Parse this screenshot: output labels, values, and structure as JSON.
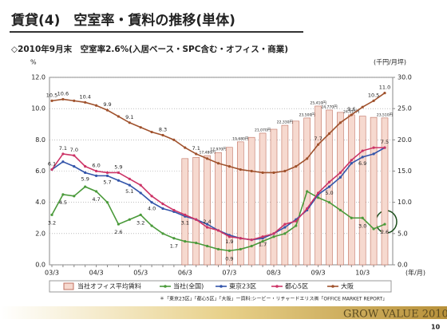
{
  "chart_data": {
    "type": "combo",
    "title": "賃貸(4)　空室率・賃料の推移(単体)",
    "subtitle": "◇2010年9月末　空室率2.6%(入居ベース・SPC含む・オフィス・商業)",
    "y_label": "%",
    "y2_label": "(千円/月坪)",
    "x_label": "(年/月)",
    "note": "＊「東京23区」「都心5区」「大阪」ー資料:シービー・リチャードエリス㈱「OFFICE MARKET REPORT」",
    "footer": "GROW VALUE 2010",
    "page": "10",
    "categories": [
      "03/3",
      null,
      null,
      null,
      "04/3",
      null,
      null,
      null,
      "05/3",
      null,
      null,
      null,
      "06/3",
      null,
      null,
      null,
      "07/3",
      null,
      null,
      null,
      "08/3",
      null,
      null,
      null,
      "09/3",
      null,
      null,
      null,
      "10/3",
      null,
      null
    ],
    "ylim": [
      0,
      12
    ],
    "yticks": [
      {
        "value": 0,
        "label": "0.0"
      },
      {
        "value": 2,
        "label": "2.0"
      },
      {
        "value": 4,
        "label": "4.0"
      },
      {
        "value": 6,
        "label": "6.0"
      },
      {
        "value": 8,
        "label": "8.0"
      },
      {
        "value": 10,
        "label": "10.0"
      },
      {
        "value": 12,
        "label": "12.0"
      }
    ],
    "y2lim": [
      0,
      30
    ],
    "y2ticks": [
      {
        "value": 0,
        "label": "0.0"
      },
      {
        "value": 5,
        "label": "5.0"
      },
      {
        "value": 10,
        "label": "10.0"
      },
      {
        "value": 15,
        "label": "15.0"
      },
      {
        "value": 20,
        "label": "20.0"
      },
      {
        "value": 25,
        "label": "25.0"
      },
      {
        "value": 30,
        "label": "30.0"
      }
    ],
    "grid": true,
    "series": [
      {
        "name": "当社オフィス平均賃料",
        "type": "bar",
        "axis": "y2",
        "color": "#f6d9cf",
        "values": [
          null,
          null,
          null,
          null,
          null,
          null,
          null,
          null,
          null,
          null,
          null,
          null,
          17.0,
          17.2,
          17.48,
          17.97,
          18.8,
          19.68,
          20.4,
          21.07,
          21.7,
          22.33,
          23.0,
          23.5,
          25.41,
          24.77,
          24.4,
          24.01,
          23.8,
          23.6,
          23.51
        ],
        "value_labels": [
          null,
          null,
          null,
          null,
          null,
          null,
          null,
          null,
          null,
          null,
          null,
          null,
          null,
          null,
          "17,480円",
          "17,970円",
          null,
          "19,680円",
          null,
          "21,070円",
          null,
          "22,330円",
          null,
          "23,500円",
          "25,410円",
          "24,770円",
          null,
          "24,010円",
          null,
          null,
          "23,510円"
        ]
      },
      {
        "name": "当社(全国)",
        "type": "line",
        "color": "#4a9a3a",
        "values": [
          3.2,
          4.5,
          4.4,
          5.0,
          4.7,
          4.0,
          2.6,
          2.9,
          3.2,
          2.5,
          2.0,
          1.7,
          1.5,
          1.4,
          1.2,
          1.0,
          0.9,
          1.0,
          1.2,
          1.5,
          1.8,
          2.0,
          2.5,
          4.7,
          4.3,
          4.0,
          3.5,
          3.0,
          3.0,
          2.3,
          2.6
        ],
        "value_labels": [
          "3.2",
          "4.5",
          null,
          null,
          "4.7",
          null,
          "2.6",
          null,
          "3.2",
          null,
          null,
          "1.7",
          null,
          null,
          null,
          null,
          "0.9",
          null,
          null,
          null,
          null,
          null,
          null,
          null,
          null,
          null,
          null,
          null,
          "3.0",
          null,
          "2.6"
        ]
      },
      {
        "name": "東京23区",
        "type": "line",
        "color": "#3355aa",
        "values": [
          6.1,
          6.6,
          6.3,
          5.9,
          5.7,
          5.7,
          5.4,
          5.1,
          4.6,
          4.0,
          3.6,
          3.4,
          3.1,
          2.9,
          2.6,
          2.2,
          1.9,
          1.7,
          1.6,
          1.7,
          2.0,
          2.4,
          2.9,
          3.5,
          4.5,
          5.0,
          5.6,
          6.5,
          6.9,
          7.1,
          7.5
        ],
        "value_labels": [
          null,
          null,
          null,
          "5.9",
          null,
          "5.7",
          null,
          "5.1",
          null,
          "4.0",
          null,
          null,
          "3.1",
          null,
          null,
          null,
          "1.9",
          null,
          null,
          "1.7",
          null,
          null,
          null,
          null,
          null,
          "5.0",
          null,
          null,
          "6.9",
          null,
          null
        ]
      },
      {
        "name": "都心5区",
        "type": "line",
        "color": "#cc3366",
        "values": [
          6.1,
          7.1,
          7.0,
          6.3,
          6.0,
          5.9,
          5.9,
          5.5,
          5.1,
          4.4,
          3.9,
          3.5,
          3.2,
          2.9,
          2.4,
          2.2,
          1.8,
          1.7,
          1.6,
          1.8,
          2.0,
          2.6,
          2.8,
          3.6,
          4.6,
          5.3,
          5.9,
          6.7,
          7.3,
          7.5,
          7.5
        ],
        "value_labels": [
          "6.1",
          "7.1",
          "7.0",
          null,
          "6.0",
          null,
          "5.9",
          null,
          null,
          null,
          null,
          null,
          null,
          null,
          "2.4",
          null,
          null,
          null,
          null,
          null,
          null,
          null,
          null,
          null,
          null,
          null,
          null,
          null,
          null,
          null,
          "7.5"
        ]
      },
      {
        "name": "大阪",
        "type": "line",
        "color": "#a0522d",
        "values": [
          10.5,
          10.6,
          10.5,
          10.4,
          10.2,
          9.9,
          9.5,
          9.1,
          8.8,
          8.5,
          8.3,
          8.0,
          7.5,
          7.1,
          6.8,
          6.5,
          6.3,
          6.1,
          6.0,
          5.9,
          5.9,
          6.0,
          6.3,
          6.8,
          7.7,
          8.4,
          9.1,
          9.6,
          10.1,
          10.5,
          11.0
        ],
        "value_labels": [
          "10.5",
          "10.6",
          null,
          "10.4",
          null,
          "9.9",
          null,
          "9.1",
          null,
          null,
          "8.3",
          null,
          null,
          "7.1",
          null,
          null,
          null,
          null,
          null,
          null,
          null,
          null,
          null,
          null,
          "7.7",
          null,
          null,
          "9.6",
          null,
          "10.5",
          "11.0"
        ]
      }
    ]
  }
}
